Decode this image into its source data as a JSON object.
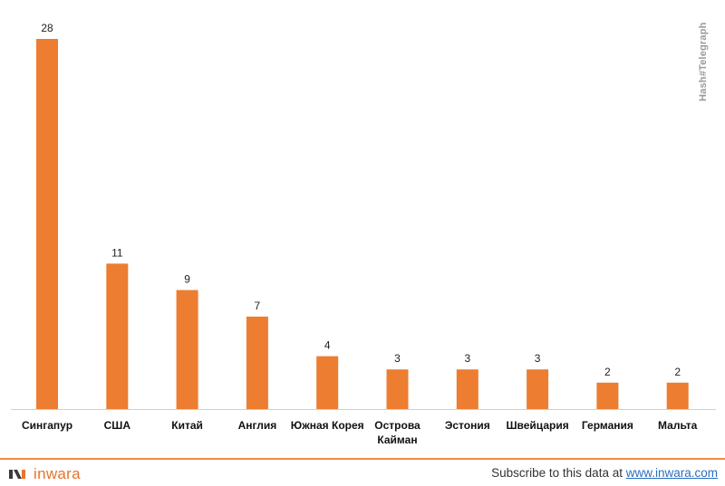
{
  "chart_data": {
    "type": "bar",
    "categories": [
      "Сингапур",
      "США",
      "Китай",
      "Англия",
      "Южная Корея",
      "Острова Кайман",
      "Эстония",
      "Швейцария",
      "Германия",
      "Мальта"
    ],
    "category_lines": [
      [
        "Сингапур"
      ],
      [
        "США"
      ],
      [
        "Китай"
      ],
      [
        "Англия"
      ],
      [
        "Южная Корея"
      ],
      [
        "Острова",
        "Кайман"
      ],
      [
        "Эстония"
      ],
      [
        "Швейцария"
      ],
      [
        "Германия"
      ],
      [
        "Мальта"
      ]
    ],
    "values": [
      28,
      11,
      9,
      7,
      4,
      3,
      3,
      3,
      2,
      2
    ],
    "data_labels": true,
    "ylim": [
      0,
      28
    ],
    "grid": false,
    "bar_color": "#ed7d31"
  },
  "watermark": "Hash#Telegraph",
  "footer": {
    "logo_text": "inwara",
    "subscribe_text": "Subscribe to this data at ",
    "link_text": "www.inwara.com"
  },
  "colors": {
    "accent": "#ed7d31",
    "link": "#2a6ebd"
  }
}
